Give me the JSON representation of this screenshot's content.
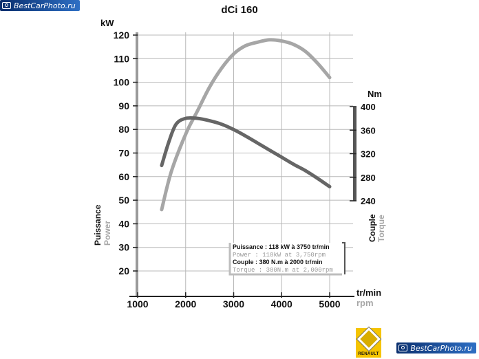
{
  "watermark": {
    "text": "BestCarPhoto.ru"
  },
  "brand": {
    "logo_text": "RENAULT",
    "color": "#f5c400"
  },
  "chart_data": {
    "type": "line",
    "title": "dCi 160",
    "x": {
      "ticks": [
        1000,
        2000,
        3000,
        4000,
        5000
      ],
      "label_fr": "tr/min",
      "label_en": "rpm",
      "range": [
        1000,
        5300
      ]
    },
    "y_left": {
      "unit": "kW",
      "ticks": [
        20,
        30,
        40,
        50,
        60,
        70,
        80,
        90,
        100,
        110,
        120
      ],
      "range": [
        10,
        120
      ],
      "label_fr": "Puissance",
      "label_en": "Power"
    },
    "y_right": {
      "unit": "Nm",
      "ticks": [
        240,
        280,
        320,
        360,
        400
      ],
      "range": [
        240,
        400
      ],
      "label_fr": "Couple",
      "label_en": "Torque"
    },
    "series": [
      {
        "axis": "left",
        "color": "#a6a6a6",
        "points": [
          [
            1500,
            46
          ],
          [
            1700,
            62
          ],
          [
            2000,
            78
          ],
          [
            2250,
            88
          ],
          [
            2500,
            98
          ],
          [
            2750,
            106
          ],
          [
            3000,
            112
          ],
          [
            3250,
            115.5
          ],
          [
            3500,
            117
          ],
          [
            3750,
            118
          ],
          [
            4000,
            117.5
          ],
          [
            4250,
            116
          ],
          [
            4500,
            113
          ],
          [
            4750,
            108
          ],
          [
            5000,
            102
          ]
        ]
      },
      {
        "axis": "right",
        "color": "#666666",
        "points": [
          [
            1500,
            300
          ],
          [
            1650,
            340
          ],
          [
            1800,
            370
          ],
          [
            2000,
            380
          ],
          [
            2250,
            380
          ],
          [
            2500,
            376
          ],
          [
            2750,
            370
          ],
          [
            3000,
            361
          ],
          [
            3250,
            350
          ],
          [
            3500,
            338
          ],
          [
            3750,
            326
          ],
          [
            4000,
            314
          ],
          [
            4250,
            302
          ],
          [
            4500,
            291
          ],
          [
            4750,
            278
          ],
          [
            5000,
            264
          ]
        ]
      }
    ],
    "legend": {
      "placement": "bottom-right",
      "lines": [
        {
          "text": "Puissance : 118 kW à 3750 tr/min",
          "style": "bold-dark"
        },
        {
          "text": "Power : 118kW at 3,750rpm",
          "style": "light"
        },
        {
          "text": "Couple : 380 N.m à 2000 tr/min",
          "style": "bold-dark"
        },
        {
          "text": "Torque : 380N.m at 2,000rpm",
          "style": "light"
        }
      ]
    },
    "grid": true
  }
}
